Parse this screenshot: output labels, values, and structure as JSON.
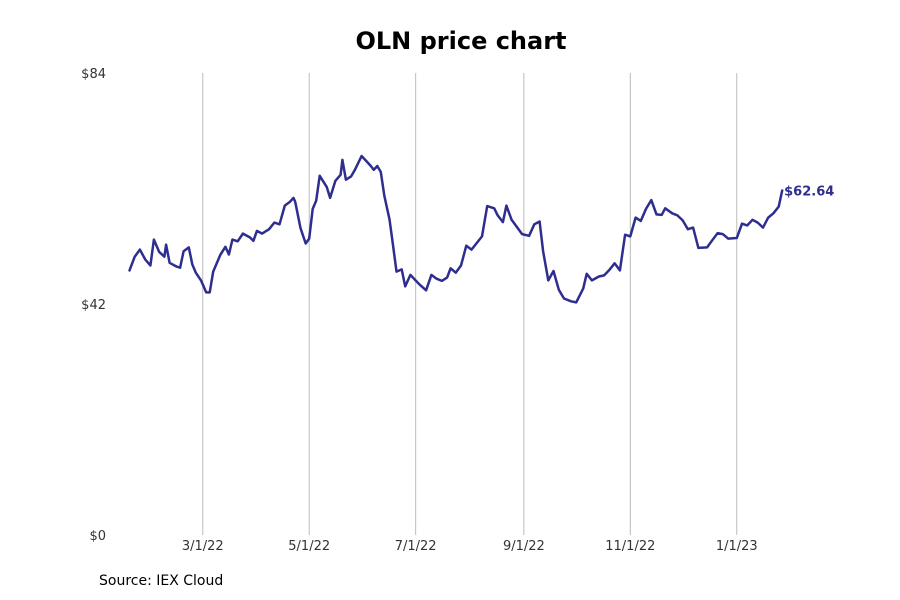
{
  "chart_data": {
    "type": "line",
    "title": "OLN price chart",
    "source": "Source: IEX Cloud",
    "line_color": "#2e2e8f",
    "grid_color": "#bbbbbb",
    "ylim": [
      0,
      84
    ],
    "y_ticks": [
      {
        "value": 0,
        "label": "$0"
      },
      {
        "value": 42,
        "label": "$42"
      },
      {
        "value": 84,
        "label": "$84"
      }
    ],
    "xlim": [
      "2022-01-08",
      "2023-02-28"
    ],
    "x_ticks": [
      {
        "date": "2022-03-01",
        "label": "3/1/22"
      },
      {
        "date": "2022-05-01",
        "label": "5/1/22"
      },
      {
        "date": "2022-07-01",
        "label": "7/1/22"
      },
      {
        "date": "2022-09-01",
        "label": "9/1/22"
      },
      {
        "date": "2022-11-01",
        "label": "11/1/22"
      },
      {
        "date": "2023-01-01",
        "label": "1/1/23"
      }
    ],
    "series": [
      {
        "name": "",
        "end_label": "$62.64",
        "points": [
          [
            "2022-01-18",
            48.1
          ],
          [
            "2022-01-21",
            50.6
          ],
          [
            "2022-01-24",
            51.9
          ],
          [
            "2022-01-27",
            50.1
          ],
          [
            "2022-01-30",
            49.0
          ],
          [
            "2022-02-01",
            53.7
          ],
          [
            "2022-02-04",
            51.5
          ],
          [
            "2022-02-07",
            50.6
          ],
          [
            "2022-02-08",
            52.8
          ],
          [
            "2022-02-10",
            49.5
          ],
          [
            "2022-02-14",
            48.8
          ],
          [
            "2022-02-16",
            48.6
          ],
          [
            "2022-02-18",
            51.6
          ],
          [
            "2022-02-21",
            52.3
          ],
          [
            "2022-02-23",
            49.2
          ],
          [
            "2022-02-25",
            47.7
          ],
          [
            "2022-02-28",
            46.3
          ],
          [
            "2022-03-03",
            44.1
          ],
          [
            "2022-03-05",
            44.1
          ],
          [
            "2022-03-07",
            47.9
          ],
          [
            "2022-03-11",
            50.9
          ],
          [
            "2022-03-14",
            52.4
          ],
          [
            "2022-03-16",
            51.0
          ],
          [
            "2022-03-18",
            53.7
          ],
          [
            "2022-03-21",
            53.4
          ],
          [
            "2022-03-24",
            54.8
          ],
          [
            "2022-03-28",
            54.1
          ],
          [
            "2022-03-30",
            53.5
          ],
          [
            "2022-04-01",
            55.3
          ],
          [
            "2022-04-04",
            54.8
          ],
          [
            "2022-04-08",
            55.6
          ],
          [
            "2022-04-11",
            56.8
          ],
          [
            "2022-04-14",
            56.5
          ],
          [
            "2022-04-17",
            59.9
          ],
          [
            "2022-04-20",
            60.6
          ],
          [
            "2022-04-22",
            61.3
          ],
          [
            "2022-04-23",
            60.6
          ],
          [
            "2022-04-26",
            55.8
          ],
          [
            "2022-04-29",
            53.0
          ],
          [
            "2022-05-01",
            53.9
          ],
          [
            "2022-05-03",
            59.3
          ],
          [
            "2022-05-05",
            60.8
          ],
          [
            "2022-05-07",
            65.3
          ],
          [
            "2022-05-11",
            63.3
          ],
          [
            "2022-05-13",
            61.3
          ],
          [
            "2022-05-16",
            64.4
          ],
          [
            "2022-05-19",
            65.5
          ],
          [
            "2022-05-20",
            68.2
          ],
          [
            "2022-05-22",
            64.6
          ],
          [
            "2022-05-25",
            65.2
          ],
          [
            "2022-05-27",
            66.3
          ],
          [
            "2022-05-31",
            68.9
          ],
          [
            "2022-06-05",
            67.2
          ],
          [
            "2022-06-07",
            66.4
          ],
          [
            "2022-06-09",
            67.1
          ],
          [
            "2022-06-11",
            66.0
          ],
          [
            "2022-06-13",
            61.7
          ],
          [
            "2022-06-16",
            57.4
          ],
          [
            "2022-06-18",
            52.7
          ],
          [
            "2022-06-20",
            47.9
          ],
          [
            "2022-06-23",
            48.3
          ],
          [
            "2022-06-25",
            45.2
          ],
          [
            "2022-06-28",
            47.3
          ],
          [
            "2022-07-03",
            45.6
          ],
          [
            "2022-07-07",
            44.5
          ],
          [
            "2022-07-10",
            47.3
          ],
          [
            "2022-07-13",
            46.6
          ],
          [
            "2022-07-16",
            46.2
          ],
          [
            "2022-07-19",
            46.8
          ],
          [
            "2022-07-21",
            48.5
          ],
          [
            "2022-07-24",
            47.7
          ],
          [
            "2022-07-27",
            49.0
          ],
          [
            "2022-07-30",
            52.6
          ],
          [
            "2022-08-02",
            51.9
          ],
          [
            "2022-08-08",
            54.3
          ],
          [
            "2022-08-11",
            59.8
          ],
          [
            "2022-08-15",
            59.4
          ],
          [
            "2022-08-17",
            58.1
          ],
          [
            "2022-08-20",
            56.9
          ],
          [
            "2022-08-22",
            59.9
          ],
          [
            "2022-08-25",
            57.3
          ],
          [
            "2022-08-31",
            54.7
          ],
          [
            "2022-09-04",
            54.4
          ],
          [
            "2022-09-07",
            56.5
          ],
          [
            "2022-09-10",
            57.0
          ],
          [
            "2022-09-12",
            51.6
          ],
          [
            "2022-09-15",
            46.3
          ],
          [
            "2022-09-18",
            48.0
          ],
          [
            "2022-09-21",
            44.6
          ],
          [
            "2022-09-24",
            43.0
          ],
          [
            "2022-09-28",
            42.5
          ],
          [
            "2022-10-01",
            42.3
          ],
          [
            "2022-10-05",
            44.8
          ],
          [
            "2022-10-07",
            47.5
          ],
          [
            "2022-10-10",
            46.3
          ],
          [
            "2022-10-14",
            47.0
          ],
          [
            "2022-10-17",
            47.2
          ],
          [
            "2022-10-20",
            48.2
          ],
          [
            "2022-10-23",
            49.4
          ],
          [
            "2022-10-26",
            48.1
          ],
          [
            "2022-10-29",
            54.6
          ],
          [
            "2022-11-01",
            54.3
          ],
          [
            "2022-11-04",
            57.7
          ],
          [
            "2022-11-07",
            57.1
          ],
          [
            "2022-11-10",
            59.3
          ],
          [
            "2022-11-13",
            60.9
          ],
          [
            "2022-11-16",
            58.3
          ],
          [
            "2022-11-19",
            58.2
          ],
          [
            "2022-11-21",
            59.4
          ],
          [
            "2022-11-25",
            58.5
          ],
          [
            "2022-11-28",
            58.1
          ],
          [
            "2022-12-01",
            57.2
          ],
          [
            "2022-12-04",
            55.6
          ],
          [
            "2022-12-07",
            55.9
          ],
          [
            "2022-12-10",
            52.2
          ],
          [
            "2022-12-15",
            52.3
          ],
          [
            "2022-12-18",
            53.6
          ],
          [
            "2022-12-21",
            54.9
          ],
          [
            "2022-12-24",
            54.7
          ],
          [
            "2022-12-27",
            53.9
          ],
          [
            "2023-01-01",
            54.0
          ],
          [
            "2023-01-04",
            56.6
          ],
          [
            "2023-01-07",
            56.3
          ],
          [
            "2023-01-10",
            57.3
          ],
          [
            "2023-01-13",
            56.8
          ],
          [
            "2023-01-16",
            55.9
          ],
          [
            "2023-01-19",
            57.7
          ],
          [
            "2023-01-22",
            58.5
          ],
          [
            "2023-01-25",
            59.7
          ],
          [
            "2023-01-27",
            62.64
          ]
        ]
      }
    ]
  }
}
